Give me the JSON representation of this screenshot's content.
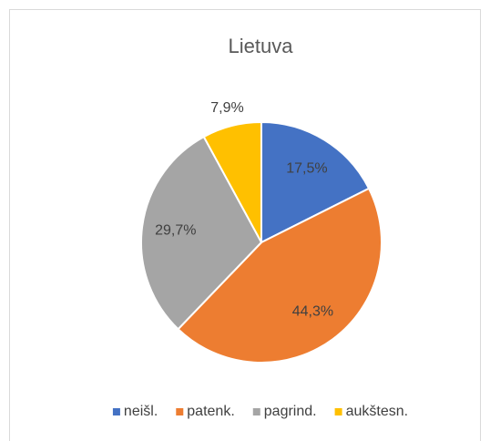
{
  "chart_data": {
    "type": "pie",
    "title": "Lietuva",
    "categories": [
      "neišl.",
      "patenk.",
      "pagrind.",
      "aukštesn."
    ],
    "values": [
      17.5,
      44.3,
      29.7,
      7.9
    ],
    "value_labels": [
      "17,5%",
      "44,3%",
      "29,7%",
      "7,9%"
    ],
    "colors": [
      "#4472c4",
      "#ed7d31",
      "#a5a5a5",
      "#ffc000"
    ],
    "legend": "bottom"
  }
}
